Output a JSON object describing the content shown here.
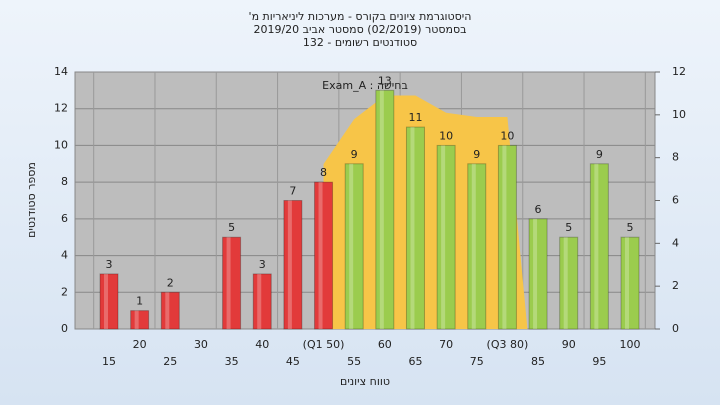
{
  "chart_data": {
    "type": "bar",
    "title": "היסטוגרמת ציונים בקורס - מערכות ליניאריות מ'",
    "subtitle": "בסמסטר (02/2019) סמסטר אביב 2019/20",
    "subtitle2": "סטודנטים רשומים - 132",
    "annotation": "בחישה : Exam_A",
    "x_label": "טווח ציונים",
    "y_label": "מספר סטודנטים",
    "categories": [
      "15",
      "20",
      "25",
      "30",
      "35",
      "40",
      "45",
      "(Q1 50)",
      "55",
      "60",
      "65",
      "70",
      "75",
      "(Q3 80)",
      "85",
      "90",
      "95",
      "100"
    ],
    "series": [
      {
        "values": [
          3,
          1,
          2,
          null,
          5,
          3,
          7,
          8,
          9,
          13,
          11,
          10,
          9,
          10,
          6,
          5,
          9,
          5
        ],
        "colors": [
          "#e23a3a",
          "#e23a3a",
          "#e23a3a",
          "#e23a3a",
          "#e23a3a",
          "#e23a3a",
          "#e23a3a",
          "#e23a3a",
          "#9bcc4e",
          "#9bcc4e",
          "#9bcc4e",
          "#9bcc4e",
          "#9bcc4e",
          "#9bcc4e",
          "#9bcc4e",
          "#9bcc4e",
          "#9bcc4e",
          "#9bcc4e"
        ]
      },
      {
        "type": "area",
        "axis": "y2",
        "color": "#f7c548",
        "values": [
          null,
          null,
          null,
          null,
          null,
          null,
          null,
          7.7,
          9.8,
          10.9,
          10.9,
          10.1,
          9.9,
          9.9,
          null,
          null,
          null,
          null
        ]
      }
    ],
    "ylim": [
      0,
      14
    ],
    "yticks": [
      0,
      2,
      4,
      6,
      8,
      10,
      12,
      14
    ],
    "y2lim": [
      0,
      12
    ],
    "y2ticks": [
      0,
      2,
      4,
      6,
      8,
      10,
      12
    ],
    "grid": true
  }
}
